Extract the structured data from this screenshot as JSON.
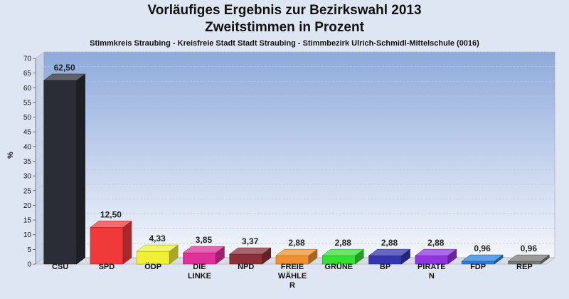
{
  "chart_data": {
    "type": "bar",
    "title": "Vorläufiges Ergebnis zur Bezirkswahl 2013",
    "subtitle": "Zweitstimmen in Prozent",
    "caption": "Stimmkreis Straubing - Kreisfreie Stadt Stadt Straubing - Stimmbezirk Ulrich-Schmidl-Mittelschule (0016)",
    "ylabel": "%",
    "ylim": [
      0,
      70
    ],
    "yticks": [
      "0",
      "5",
      "10",
      "15",
      "20",
      "25",
      "30",
      "35",
      "40",
      "45",
      "50",
      "55",
      "60",
      "65",
      "70"
    ],
    "categories": [
      [
        "CSU"
      ],
      [
        "SPD"
      ],
      [
        "ÖDP"
      ],
      [
        "DIE",
        "LINKE"
      ],
      [
        "NPD"
      ],
      [
        "FREIE",
        "WÄHLE",
        "R"
      ],
      [
        "GRÜNE"
      ],
      [
        "BP"
      ],
      [
        "PIRATE",
        "N"
      ],
      [
        "FDP"
      ],
      [
        "REP"
      ]
    ],
    "values": [
      62.5,
      12.5,
      4.33,
      3.85,
      3.37,
      2.88,
      2.88,
      2.88,
      2.88,
      0.96,
      0.96
    ],
    "value_labels": [
      "62,50",
      "12,50",
      "4,33",
      "3,85",
      "3,37",
      "2,88",
      "2,88",
      "2,88",
      "2,88",
      "0,96",
      "0,96"
    ],
    "colors": [
      "#2a2d35",
      "#f03a3a",
      "#f0f035",
      "#e0309a",
      "#8c2f38",
      "#f09030",
      "#35e035",
      "#3535b0",
      "#9035e0",
      "#2a80e0",
      "#7a7a7a"
    ],
    "grid": true
  }
}
